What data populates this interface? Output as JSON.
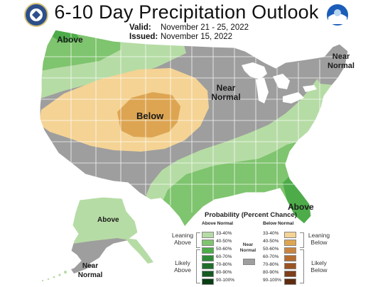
{
  "header": {
    "title": "6-10 Day Precipitation Outlook",
    "valid_label": "Valid:",
    "valid_value": "November 21 - 25, 2022",
    "issued_label": "Issued:",
    "issued_value": "November 15, 2022"
  },
  "logos": {
    "left": "doc-seal-icon",
    "right": "noaa-logo-icon"
  },
  "map_labels": {
    "pacific_nw": "Above",
    "central": "Below",
    "midwest": "Near Normal",
    "new_england": "Near Normal",
    "florida": "Above",
    "alaska_north": "Above",
    "alaska_south": "Near Normal"
  },
  "colors": {
    "above_light": "#b6dca5",
    "above_mid": "#7fc46e",
    "above_dark": "#3c9a3a",
    "below_light": "#f4d394",
    "below_mid": "#dda552",
    "near_normal": "#9e9e9e",
    "state_lines": "#ffffff",
    "water": "#ffffff"
  },
  "legend": {
    "title": "Probability (Percent Chance)",
    "above_header": "Above Normal",
    "below_header": "Below Normal",
    "near_normal": "Near Normal",
    "leaning_above": "Leaning Above",
    "likely_above": "Likely Above",
    "leaning_below": "Leaning Below",
    "likely_below": "Likely Below",
    "ranges": [
      "33-40%",
      "40-50%",
      "50-60%",
      "60-70%",
      "70-80%",
      "80-90%",
      "90-100%"
    ],
    "above_colors": [
      "#b6dca5",
      "#7fc46e",
      "#4dac49",
      "#2f8a36",
      "#1f6e2c",
      "#145a22",
      "#0a3d14"
    ],
    "below_colors": [
      "#f4d394",
      "#dda552",
      "#c98642",
      "#b56c2e",
      "#9c5322",
      "#7e3f1a",
      "#5e2c10"
    ],
    "near_color": "#9e9e9e"
  }
}
